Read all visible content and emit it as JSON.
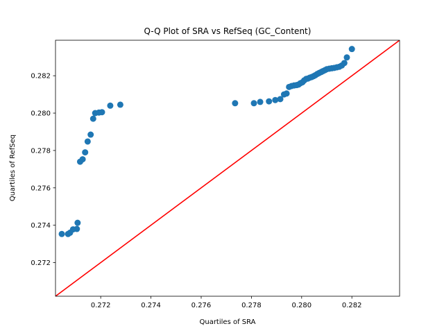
{
  "chart_data": {
    "type": "scatter",
    "title": "Q-Q Plot of SRA vs RefSeq (GC_Content)",
    "xlabel": "Quartiles of SRA",
    "ylabel": "Quartiles of RefSeq",
    "xlim": [
      0.2702,
      0.2839
    ],
    "ylim": [
      0.2702,
      0.2839
    ],
    "xticks": [
      0.272,
      0.274,
      0.276,
      0.278,
      0.28,
      0.282
    ],
    "yticks": [
      0.272,
      0.274,
      0.276,
      0.278,
      0.28,
      0.282
    ],
    "xtick_labels": [
      "0.272",
      "0.274",
      "0.276",
      "0.278",
      "0.280",
      "0.282"
    ],
    "ytick_labels": [
      "0.272",
      "0.274",
      "0.276",
      "0.278",
      "0.280",
      "0.282"
    ],
    "grid": false,
    "point_color": "#1f77b4",
    "reference_line": {
      "from": [
        0.2702,
        0.2702
      ],
      "to": [
        0.2839,
        0.2839
      ],
      "color": "#ff0000"
    },
    "points": [
      [
        0.27045,
        0.27353
      ],
      [
        0.2707,
        0.27353
      ],
      [
        0.27078,
        0.2736
      ],
      [
        0.2709,
        0.27378
      ],
      [
        0.27105,
        0.2738
      ],
      [
        0.27108,
        0.27413
      ],
      [
        0.27118,
        0.2774
      ],
      [
        0.27128,
        0.27753
      ],
      [
        0.27138,
        0.2779
      ],
      [
        0.27148,
        0.27848
      ],
      [
        0.2716,
        0.27885
      ],
      [
        0.2717,
        0.2797
      ],
      [
        0.27178,
        0.28
      ],
      [
        0.27193,
        0.28003
      ],
      [
        0.27205,
        0.28005
      ],
      [
        0.27238,
        0.2804
      ],
      [
        0.27278,
        0.28045
      ],
      [
        0.27735,
        0.28053
      ],
      [
        0.2781,
        0.28053
      ],
      [
        0.27835,
        0.2806
      ],
      [
        0.2787,
        0.28063
      ],
      [
        0.27895,
        0.2807
      ],
      [
        0.27915,
        0.28075
      ],
      [
        0.2793,
        0.281
      ],
      [
        0.2794,
        0.28105
      ],
      [
        0.2795,
        0.2814
      ],
      [
        0.2796,
        0.28145
      ],
      [
        0.2797,
        0.28148
      ],
      [
        0.2798,
        0.2815
      ],
      [
        0.27988,
        0.28153
      ],
      [
        0.27995,
        0.2816
      ],
      [
        0.28003,
        0.28165
      ],
      [
        0.2801,
        0.28175
      ],
      [
        0.28018,
        0.28183
      ],
      [
        0.28025,
        0.28185
      ],
      [
        0.28033,
        0.2819
      ],
      [
        0.2804,
        0.28193
      ],
      [
        0.28048,
        0.28198
      ],
      [
        0.28055,
        0.28203
      ],
      [
        0.28063,
        0.2821
      ],
      [
        0.2807,
        0.28215
      ],
      [
        0.28078,
        0.2822
      ],
      [
        0.28085,
        0.28225
      ],
      [
        0.28093,
        0.2823
      ],
      [
        0.281,
        0.28235
      ],
      [
        0.2811,
        0.28238
      ],
      [
        0.2812,
        0.2824
      ],
      [
        0.2813,
        0.28242
      ],
      [
        0.2814,
        0.28245
      ],
      [
        0.2815,
        0.28248
      ],
      [
        0.2816,
        0.28255
      ],
      [
        0.2817,
        0.28268
      ],
      [
        0.2818,
        0.28298
      ],
      [
        0.282,
        0.28343
      ]
    ]
  }
}
